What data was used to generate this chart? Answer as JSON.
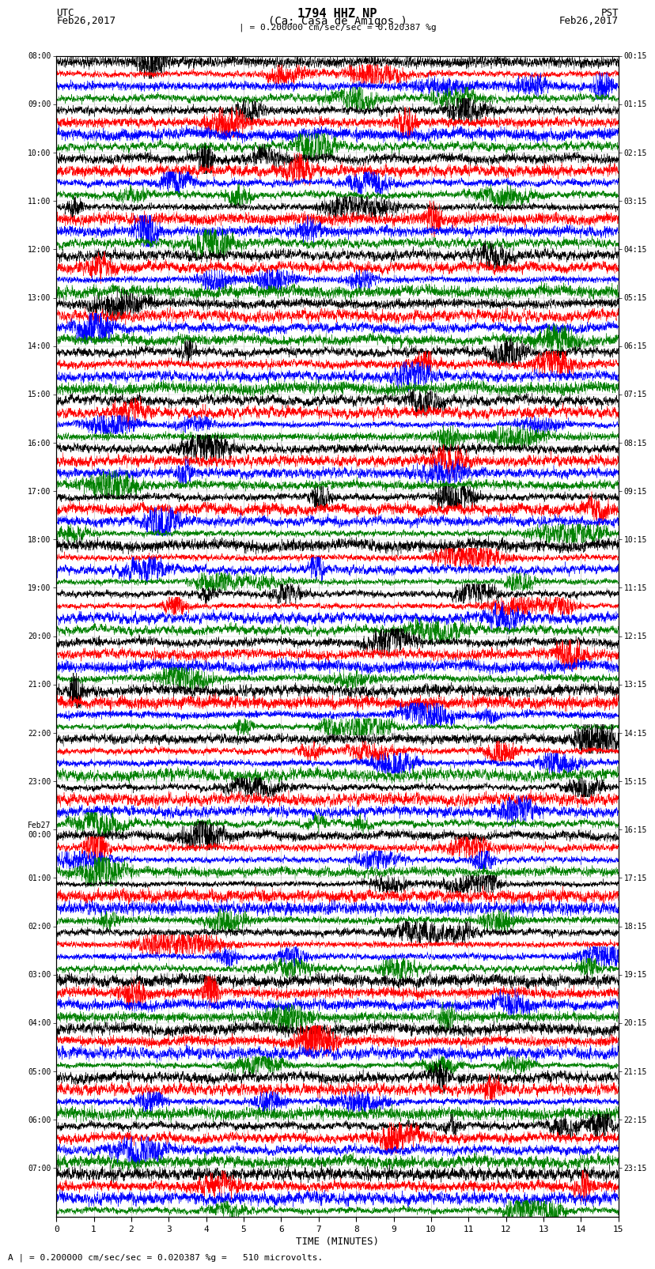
{
  "title_line1": "1794 HHZ NP",
  "title_line2": "(Ca: Casa de Amigos )",
  "scale_text": "| = 0.200000 cm/sec/sec = 0.020387 %g",
  "bottom_scale_text": "A | = 0.200000 cm/sec/sec = 0.020387 %g =   510 microvolts.",
  "utc_label": "UTC",
  "utc_date": "Feb26,2017",
  "pst_label": "PST",
  "pst_date": "Feb26,2017",
  "xlabel": "TIME (MINUTES)",
  "left_times_utc": [
    "08:00",
    "09:00",
    "10:00",
    "11:00",
    "12:00",
    "13:00",
    "14:00",
    "15:00",
    "16:00",
    "17:00",
    "18:00",
    "19:00",
    "20:00",
    "21:00",
    "22:00",
    "23:00",
    "Feb27\n00:00",
    "01:00",
    "02:00",
    "03:00",
    "04:00",
    "05:00",
    "06:00",
    "07:00"
  ],
  "right_times_pst": [
    "00:15",
    "01:15",
    "02:15",
    "03:15",
    "04:15",
    "05:15",
    "06:15",
    "07:15",
    "08:15",
    "09:15",
    "10:15",
    "11:15",
    "12:15",
    "13:15",
    "14:15",
    "15:15",
    "16:15",
    "17:15",
    "18:15",
    "19:15",
    "20:15",
    "21:15",
    "22:15",
    "23:15"
  ],
  "num_rows": 24,
  "traces_per_row": 4,
  "colors": [
    "black",
    "red",
    "blue",
    "green"
  ],
  "figsize": [
    8.5,
    16.13
  ],
  "dpi": 100,
  "bg_color": "white",
  "minutes_ticks": [
    0,
    1,
    2,
    3,
    4,
    5,
    6,
    7,
    8,
    9,
    10,
    11,
    12,
    13,
    14,
    15
  ],
  "xlim": [
    0,
    15
  ]
}
